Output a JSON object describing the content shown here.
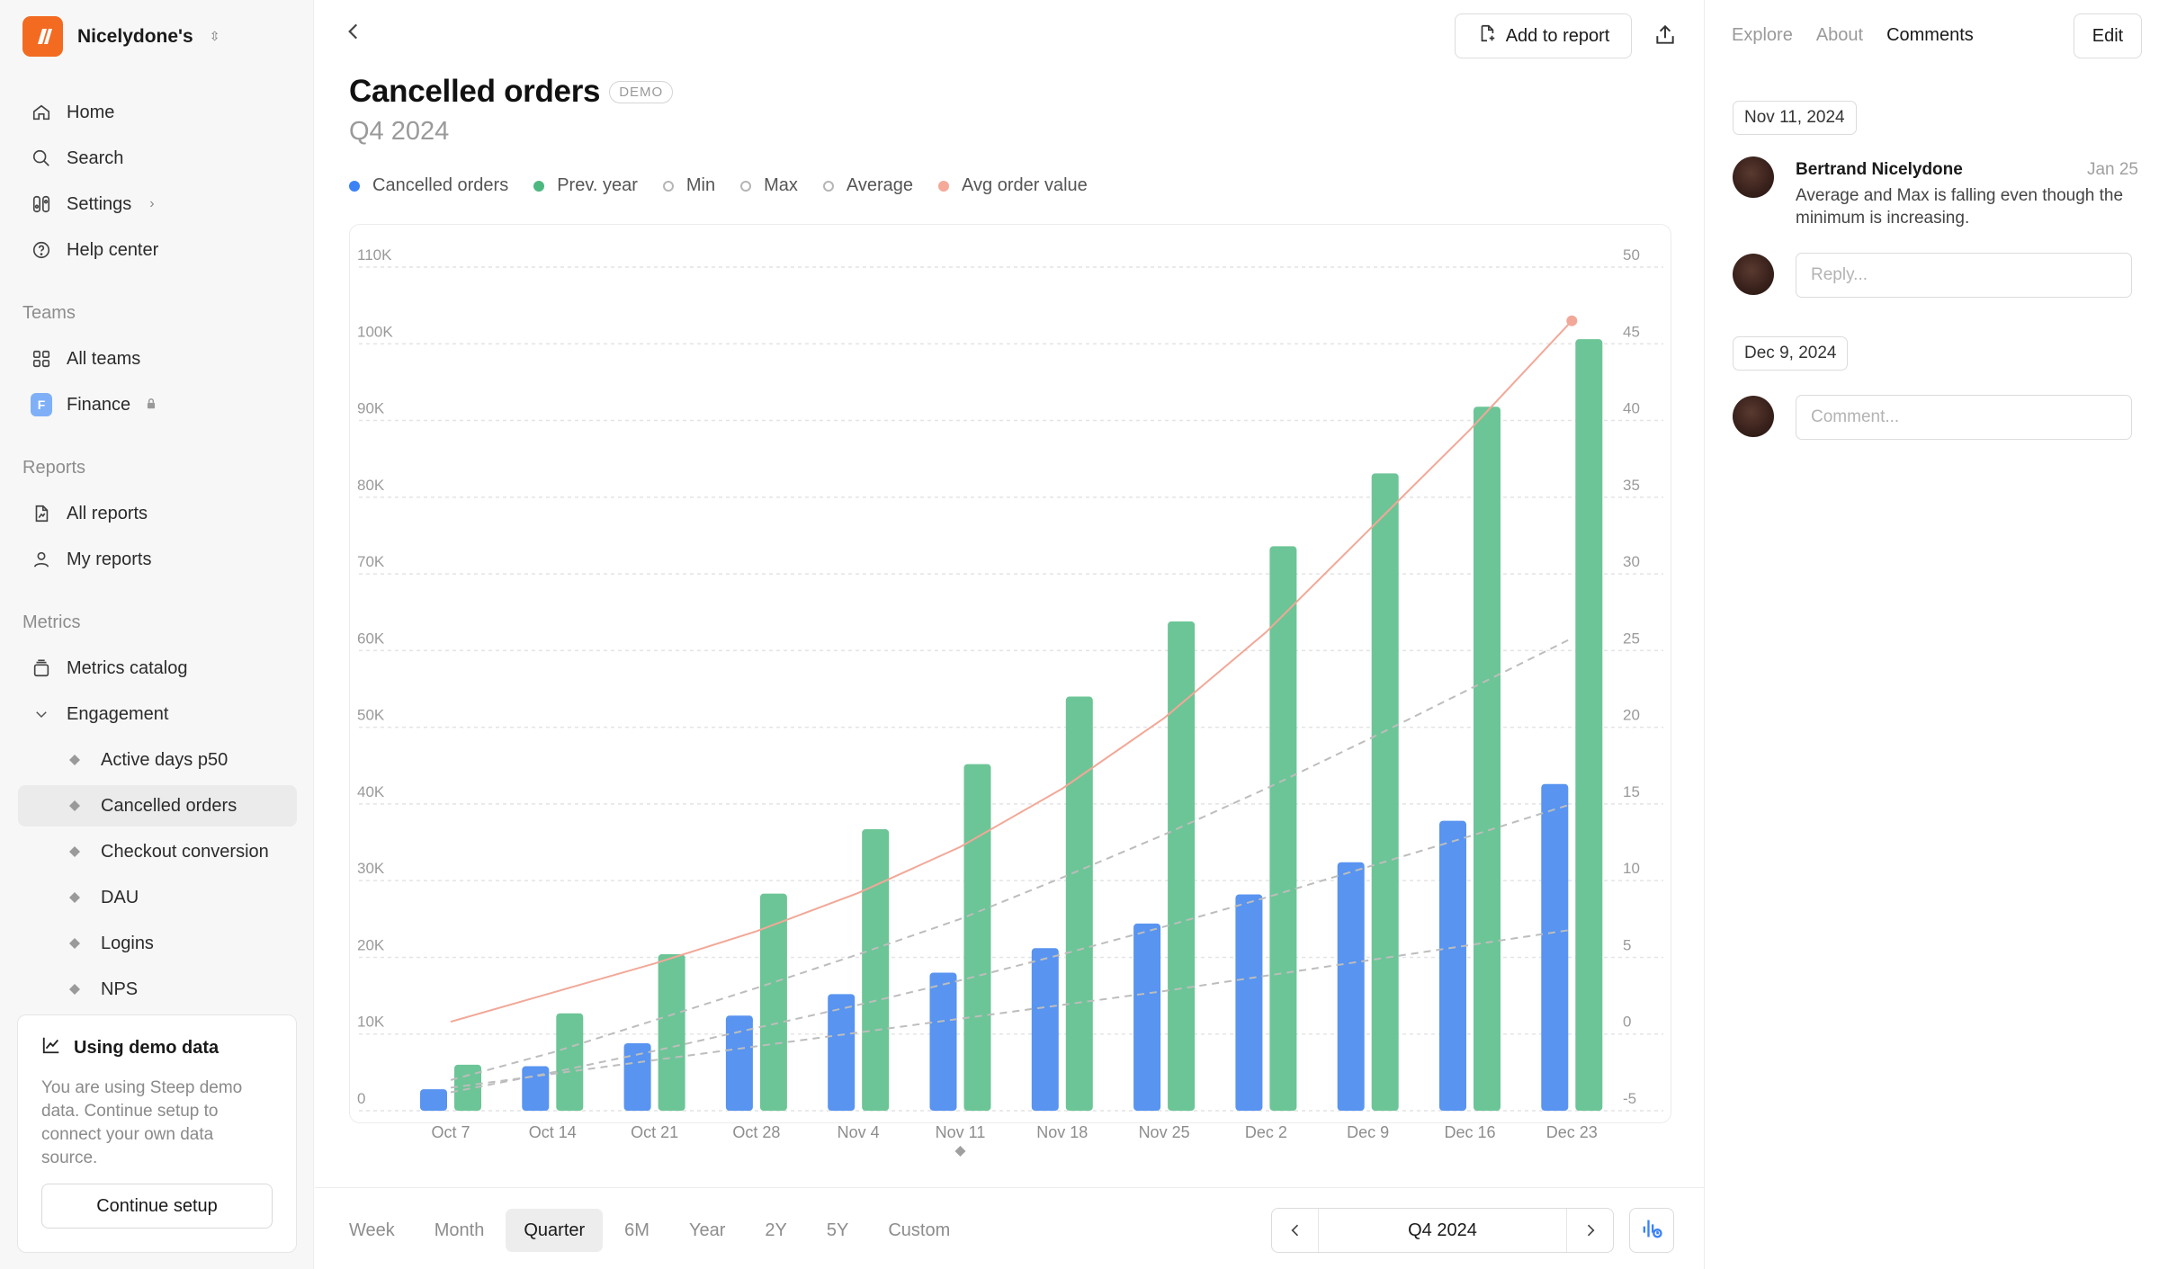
{
  "workspace": {
    "name": "Nicelydone's"
  },
  "nav": {
    "home": "Home",
    "search": "Search",
    "settings": "Settings",
    "help": "Help center"
  },
  "teams": {
    "label": "Teams",
    "all": "All teams",
    "finance": "Finance",
    "finance_initial": "F"
  },
  "reports": {
    "label": "Reports",
    "all": "All reports",
    "mine": "My reports"
  },
  "metrics": {
    "label": "Metrics",
    "catalog": "Metrics catalog",
    "engagement": "Engagement",
    "items": [
      "Active days p50",
      "Cancelled orders",
      "Checkout conversion",
      "DAU",
      "Logins",
      "NPS"
    ]
  },
  "demo_card": {
    "title": "Using demo data",
    "text": "You are using Steep demo data. Continue setup to connect your own data source.",
    "button": "Continue setup"
  },
  "header": {
    "add_to_report": "Add to report"
  },
  "page": {
    "title": "Cancelled orders",
    "tag": "DEMO",
    "subtitle": "Q4 2024"
  },
  "legend": [
    {
      "label": "Cancelled orders",
      "color": "#3b82f6",
      "style": "filled"
    },
    {
      "label": "Prev. year",
      "color": "#4cb87f",
      "style": "filled"
    },
    {
      "label": "Min",
      "color": "#b5b5b5",
      "style": "ring"
    },
    {
      "label": "Max",
      "color": "#b5b5b5",
      "style": "ring"
    },
    {
      "label": "Average",
      "color": "#b5b5b5",
      "style": "ring"
    },
    {
      "label": "Avg order value",
      "color": "#f4a999",
      "style": "filled"
    }
  ],
  "chart_data": {
    "type": "bar",
    "categories": [
      "Oct 7",
      "Oct 14",
      "Oct 21",
      "Oct 28",
      "Nov 4",
      "Nov 11",
      "Nov 18",
      "Nov 25",
      "Dec 2",
      "Dec 9",
      "Dec 16",
      "Dec 23"
    ],
    "y_left": {
      "ticks": [
        "0",
        "10K",
        "20K",
        "30K",
        "40K",
        "50K",
        "60K",
        "70K",
        "80K",
        "90K",
        "100K",
        "110K"
      ],
      "range": [
        0,
        110000
      ]
    },
    "y_right": {
      "ticks": [
        "-5",
        "0",
        "5",
        "10",
        "15",
        "20",
        "25",
        "30",
        "35",
        "40",
        "45",
        "50"
      ],
      "range": [
        -5,
        50
      ]
    },
    "series": [
      {
        "name": "Cancelled orders",
        "kind": "bar",
        "axis": "left",
        "color": "#5894f0",
        "values": [
          2800,
          5800,
          8800,
          12400,
          15200,
          18000,
          21200,
          24400,
          28200,
          32400,
          37800,
          42600
        ]
      },
      {
        "name": "Prev. year",
        "kind": "bar",
        "axis": "left",
        "color": "#6cc596",
        "values": [
          6000,
          12700,
          20400,
          28300,
          36700,
          45200,
          54000,
          63800,
          73600,
          83100,
          91800,
          100600
        ]
      },
      {
        "name": "Min",
        "kind": "dashed-line",
        "axis": "right",
        "color": "#bdbdbd",
        "values": [
          -3.5,
          -2.6,
          -1.7,
          -0.8,
          0.1,
          1.0,
          1.9,
          2.8,
          3.8,
          4.8,
          5.8,
          6.8
        ]
      },
      {
        "name": "Max",
        "kind": "dashed-line",
        "axis": "right",
        "color": "#bdbdbd",
        "values": [
          -3.0,
          -1.2,
          0.9,
          3.0,
          5.2,
          7.5,
          10.2,
          13.0,
          16.0,
          19.2,
          22.5,
          25.8
        ]
      },
      {
        "name": "Average",
        "kind": "dashed-line",
        "axis": "right",
        "color": "#bdbdbd",
        "values": [
          -3.8,
          -2.5,
          -1.1,
          0.4,
          1.9,
          3.5,
          5.2,
          7.0,
          8.9,
          10.9,
          12.9,
          15.0
        ]
      },
      {
        "name": "Avg order value",
        "kind": "line",
        "axis": "right",
        "color": "#f2a898",
        "values": [
          0.8,
          2.7,
          4.6,
          6.7,
          9.2,
          12.2,
          16.0,
          20.6,
          26.2,
          32.8,
          39.4,
          46.5
        ]
      }
    ],
    "marker_category": "Nov 11"
  },
  "range_tabs": [
    "Week",
    "Month",
    "Quarter",
    "6M",
    "Year",
    "2Y",
    "5Y",
    "Custom"
  ],
  "range_active": "Quarter",
  "period": "Q4 2024",
  "right_tabs": [
    "Explore",
    "About",
    "Comments"
  ],
  "right_active": "Comments",
  "edit": "Edit",
  "comments": [
    {
      "date": "Nov 11, 2024",
      "author": "Bertrand Nicelydone",
      "when": "Jan 25",
      "text": "Average and Max is falling even though the minimum is increasing.",
      "reply_placeholder": "Reply..."
    },
    {
      "date": "Dec 9, 2024",
      "comment_placeholder": "Comment..."
    }
  ]
}
